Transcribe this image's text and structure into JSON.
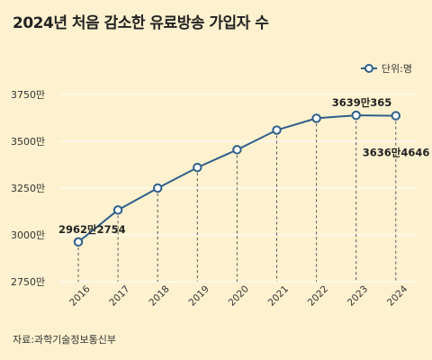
{
  "page": {
    "title": "2024년 처음 감소한 유료방송 가입자 수",
    "source": "자료:과학기술정보통신부"
  },
  "colors": {
    "background": "#fdf1cf",
    "line": "#2e5f8a",
    "marker_fill": "#ffffff",
    "grid": "#ffffff",
    "guide": "#555555"
  },
  "chart_data": {
    "type": "line",
    "title": "2024년 처음 감소한 유료방송 가입자 수",
    "xlabel": "",
    "ylabel": "",
    "legend": {
      "label": "단위:명",
      "position": "top-right"
    },
    "categories": [
      "2016",
      "2017",
      "2018",
      "2019",
      "2020",
      "2021",
      "2022",
      "2023",
      "2024"
    ],
    "series": [
      {
        "name": "단위:명",
        "values": [
          29622754,
          31330000,
          32500000,
          33600000,
          34550000,
          35600000,
          36230000,
          36390365,
          36364646
        ]
      }
    ],
    "ylim": [
      27500000,
      37500000
    ],
    "yticks": [
      {
        "value": 27500000,
        "label": "2750만"
      },
      {
        "value": 30000000,
        "label": "3000만"
      },
      {
        "value": 32500000,
        "label": "3250만"
      },
      {
        "value": 35000000,
        "label": "3500만"
      },
      {
        "value": 37500000,
        "label": "3750만"
      }
    ],
    "grid": true,
    "annotations": [
      {
        "index": 0,
        "text": "2962만2754"
      },
      {
        "index": 7,
        "text": "3639만365"
      },
      {
        "index": 8,
        "text": "3636만4646"
      }
    ]
  }
}
